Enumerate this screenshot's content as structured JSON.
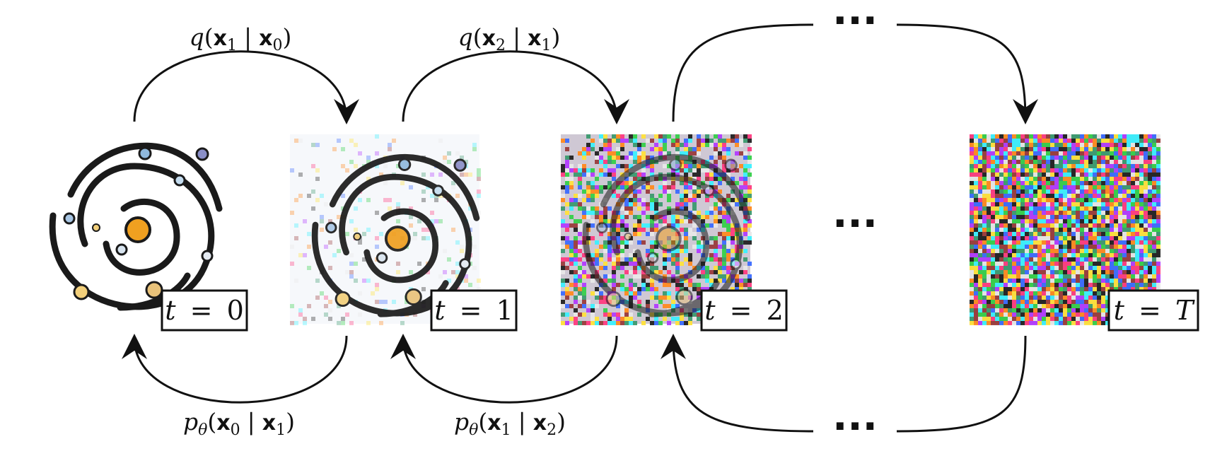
{
  "forward_labels": [
    {
      "fn": "q",
      "a": "x",
      "a_sub": "1",
      "b": "x",
      "b_sub": "0"
    },
    {
      "fn": "q",
      "a": "x",
      "a_sub": "2",
      "b": "x",
      "b_sub": "1"
    }
  ],
  "reverse_labels": [
    {
      "fn": "p",
      "fn_sub": "θ",
      "a": "x",
      "a_sub": "0",
      "b": "x",
      "b_sub": "1"
    },
    {
      "fn": "p",
      "fn_sub": "θ",
      "a": "x",
      "a_sub": "1",
      "b": "x",
      "b_sub": "2"
    }
  ],
  "timesteps": [
    {
      "var": "t",
      "eq": "=",
      "value": "0"
    },
    {
      "var": "t",
      "eq": "=",
      "value": "1"
    },
    {
      "var": "t",
      "eq": "=",
      "value": "2"
    },
    {
      "var": "t",
      "eq": "=",
      "value": "T"
    }
  ],
  "ellipsis": "···",
  "colors": {
    "stroke": "#111111",
    "galaxy_ring": "#1a1a1a",
    "sun": "#f0a020",
    "planet_blue": "#8fb8dc",
    "planet_purple": "#8a8fc8",
    "planet_yellow": "#f2cf7a"
  },
  "panels": [
    {
      "noise_level": 0.0
    },
    {
      "noise_level": 0.12
    },
    {
      "noise_level": 0.6
    },
    {
      "noise_level": 1.0
    }
  ]
}
